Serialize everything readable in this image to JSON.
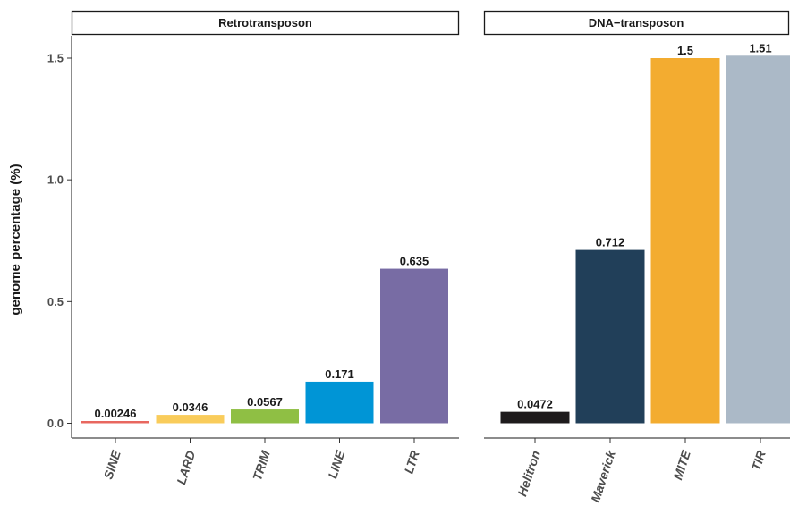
{
  "chart_data": {
    "type": "bar",
    "ylabel": "genome percentage (%)",
    "xlabel": "",
    "ylim": [
      0,
      1.6
    ],
    "yticks": [
      {
        "value": 0,
        "label": "0.0"
      },
      {
        "value": 0.5,
        "label": "0.5"
      },
      {
        "value": 1.0,
        "label": "1.0"
      },
      {
        "value": 1.5,
        "label": "1.5"
      }
    ],
    "grid": false,
    "legend": "none",
    "panels": [
      {
        "title": "Retrotransposon",
        "bars": [
          {
            "category": "SINE",
            "value": 0.00246,
            "label": "0.00246",
            "color": "#E8675F"
          },
          {
            "category": "LARD",
            "value": 0.0346,
            "label": "0.0346",
            "color": "#F9CC5B"
          },
          {
            "category": "TRIM",
            "value": 0.0567,
            "label": "0.0567",
            "color": "#8FBF44"
          },
          {
            "category": "LINE",
            "value": 0.171,
            "label": "0.171",
            "color": "#0095D6"
          },
          {
            "category": "LTR",
            "value": 0.635,
            "label": "0.635",
            "color": "#786CA4"
          }
        ]
      },
      {
        "title": "DNA−transposon",
        "bars": [
          {
            "category": "Helitron",
            "value": 0.0472,
            "label": "0.0472",
            "color": "#1E1B1C"
          },
          {
            "category": "Maverick",
            "value": 0.712,
            "label": "0.712",
            "color": "#213F59"
          },
          {
            "category": "MITE",
            "value": 1.5,
            "label": "1.5",
            "color": "#F3AC30"
          },
          {
            "category": "TIR",
            "value": 1.51,
            "label": "1.51",
            "color": "#ABB9C7"
          }
        ]
      }
    ]
  }
}
